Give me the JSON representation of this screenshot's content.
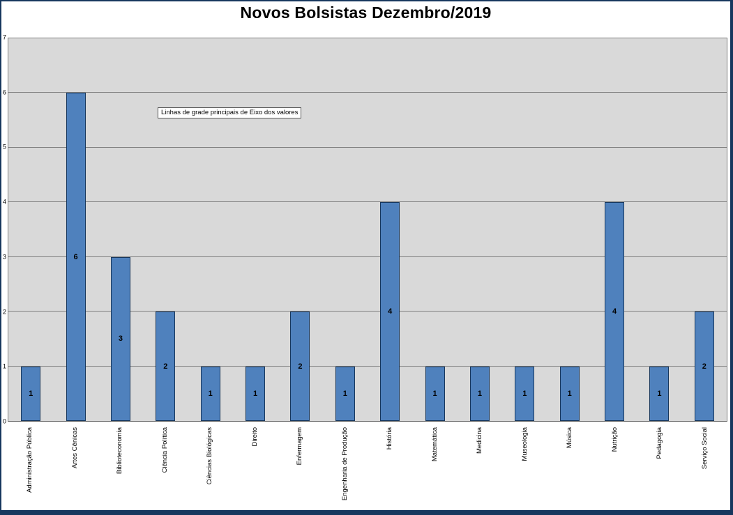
{
  "window": {
    "frame_color": "#17375e",
    "background": "#ffffff"
  },
  "tooltip": {
    "text": "Linhas de grade principais de Eixo dos valores"
  },
  "chart_data": {
    "type": "bar",
    "title": "Novos Bolsistas Dezembro/2019",
    "categories": [
      "Administração Pública",
      "Artes Cênicas",
      "Biblioteconomia",
      "Ciência Política",
      "Ciências Biológicas",
      "Direito",
      "Enfermagem",
      "Engenharia de Produção",
      "História",
      "Matemática",
      "Medicina",
      "Museologia",
      "Música",
      "Nutrição",
      "Pedagogia",
      "Serviço Social"
    ],
    "values": [
      1,
      6,
      3,
      2,
      1,
      1,
      2,
      1,
      4,
      1,
      1,
      1,
      1,
      4,
      1,
      2
    ],
    "xlabel": "",
    "ylabel": "",
    "ylim": [
      0,
      7
    ],
    "yticks": [
      0,
      1,
      2,
      3,
      4,
      5,
      6,
      7
    ],
    "grid": true,
    "legend": false,
    "data_labels": true,
    "data_label_position": "center",
    "x_label_rotation": -90,
    "colors": {
      "bar_fill": "#4f81bd",
      "bar_border": "#16365c",
      "plot_background": "#d9d9d9",
      "gridline": "#7f7f7f",
      "frame_border": "#17375e"
    }
  }
}
